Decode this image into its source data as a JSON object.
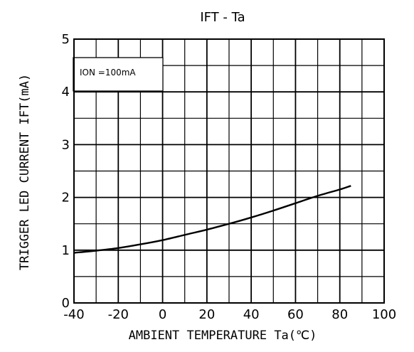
{
  "chart_data": {
    "type": "line",
    "title": "IFT   - Ta",
    "xlabel": "AMBIENT TEMPERATURE   Ta(℃)",
    "ylabel": "TRIGGER LED CURRENT   IFT(mA)",
    "xlim": [
      -40,
      100
    ],
    "ylim": [
      0,
      5
    ],
    "x_ticks": [
      "-40",
      "-20",
      "0",
      "20",
      "40",
      "60",
      "80",
      "100"
    ],
    "y_ticks": [
      "0",
      "1",
      "2",
      "3",
      "4",
      "5"
    ],
    "x_major_step": 20,
    "x_minor_step": 10,
    "y_major_step": 1,
    "y_minor_step": 0.5,
    "grid": true,
    "annotation": "ION =100mA",
    "series": [
      {
        "x": [
          -40,
          -30,
          -20,
          -10,
          0,
          10,
          20,
          30,
          40,
          50,
          60,
          70,
          80,
          85
        ],
        "y": [
          0.95,
          0.99,
          1.04,
          1.11,
          1.19,
          1.29,
          1.39,
          1.5,
          1.62,
          1.75,
          1.89,
          2.03,
          2.15,
          2.22
        ]
      }
    ]
  }
}
